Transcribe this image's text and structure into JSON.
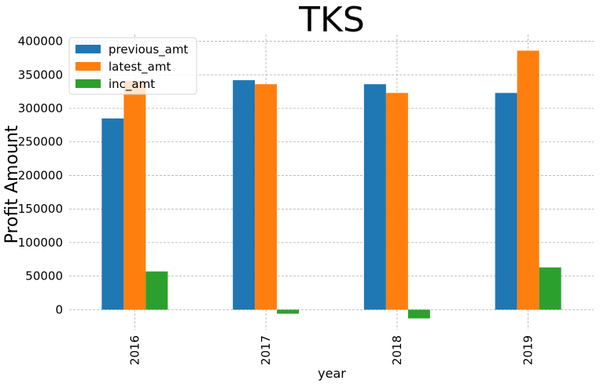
{
  "chart_data": {
    "type": "bar",
    "title": "TKS",
    "xlabel": "year",
    "ylabel": "Profit Amount",
    "categories": [
      "2016",
      "2017",
      "2018",
      "2019"
    ],
    "series": [
      {
        "name": "previous_amt",
        "values": [
          285000,
          342000,
          336000,
          323000
        ],
        "color": "#1f77b4"
      },
      {
        "name": "latest_amt",
        "values": [
          341000,
          336000,
          323000,
          386000
        ],
        "color": "#ff7f0e"
      },
      {
        "name": "inc_amt",
        "values": [
          57000,
          -6000,
          -13000,
          63000
        ],
        "color": "#2ca02c"
      }
    ],
    "ylim": [
      -30000,
      410000
    ],
    "yticks": [
      0,
      50000,
      100000,
      150000,
      200000,
      250000,
      300000,
      350000,
      400000
    ],
    "ytick_labels": [
      "0",
      "50000",
      "100000",
      "150000",
      "200000",
      "250000",
      "300000",
      "350000",
      "400000"
    ],
    "grid": true,
    "legend_position": "top-left"
  }
}
